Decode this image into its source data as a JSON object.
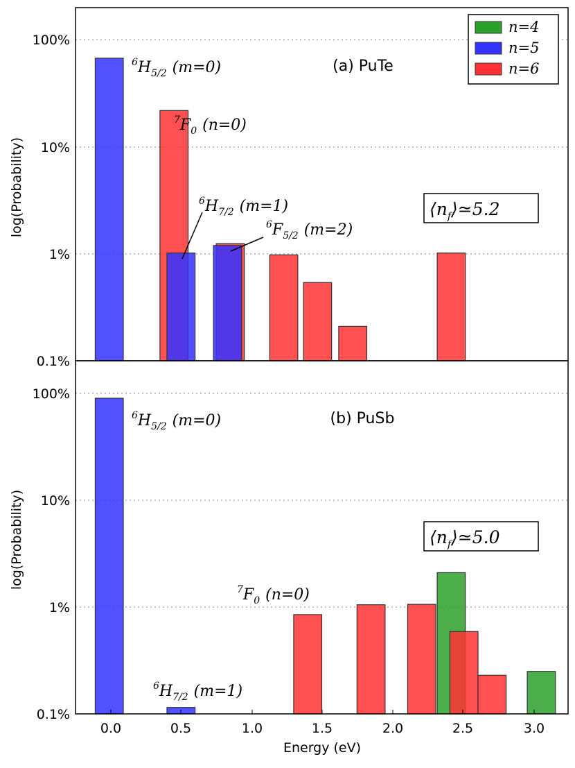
{
  "chart_data": [
    {
      "type": "bar",
      "title": "(a) PuTe",
      "xlabel": "",
      "ylabel": "log(Probability)",
      "yscale": "log",
      "ylim": [
        0.1,
        200
      ],
      "xlim": [
        -0.25,
        3.25
      ],
      "yticks": [
        {
          "value": 100,
          "label": "100%"
        },
        {
          "value": 10,
          "label": "10%"
        },
        {
          "value": 1,
          "label": "1%"
        },
        {
          "value": 0.1,
          "label": "0.1%"
        }
      ],
      "bar_width_eV": 0.2,
      "series": [
        {
          "name": "n=4",
          "color": "#2ca02c",
          "points": []
        },
        {
          "name": "n=6",
          "color": "#ff3333",
          "points": [
            {
              "x": 0.45,
              "y": 22
            },
            {
              "x": 0.85,
              "y": 1.25
            },
            {
              "x": 1.23,
              "y": 0.98
            },
            {
              "x": 1.47,
              "y": 0.54
            },
            {
              "x": 1.72,
              "y": 0.21
            },
            {
              "x": 2.42,
              "y": 1.02
            }
          ]
        },
        {
          "name": "n=5",
          "color": "#3333ff",
          "points": [
            {
              "x": -0.01,
              "y": 68
            },
            {
              "x": 0.5,
              "y": 1.02
            },
            {
              "x": 0.83,
              "y": 1.2
            }
          ]
        }
      ],
      "annotations": [
        {
          "base": "H",
          "pre": "6",
          "sub": "5/2",
          "rest": "(m=0)"
        },
        {
          "base": "F",
          "pre": "7",
          "sub": "0",
          "rest": "(n=0)"
        },
        {
          "base": "H",
          "pre": "6",
          "sub": "7/2",
          "rest": "(m=1)"
        },
        {
          "base": "F",
          "pre": "6",
          "sub": "5/2",
          "rest": "(m=2)"
        }
      ],
      "box_label": {
        "left": "⟨n",
        "sub": "f",
        "right": "⟩≃5.2"
      }
    },
    {
      "type": "bar",
      "title": "(b) PuSb",
      "xlabel": "Energy (eV)",
      "ylabel": "log(Probability)",
      "yscale": "log",
      "ylim": [
        0.1,
        200
      ],
      "xlim": [
        -0.25,
        3.25
      ],
      "xticks": [
        "0.0",
        "0.5",
        "1.0",
        "1.5",
        "2.0",
        "2.5",
        "3.0"
      ],
      "yticks": [
        {
          "value": 100,
          "label": "100%"
        },
        {
          "value": 10,
          "label": "10%"
        },
        {
          "value": 1,
          "label": "1%"
        },
        {
          "value": 0.1,
          "label": "0.1%"
        }
      ],
      "bar_width_eV": 0.2,
      "series": [
        {
          "name": "n=4",
          "color": "#2ca02c",
          "points": [
            {
              "x": 2.42,
              "y": 2.1
            },
            {
              "x": 3.06,
              "y": 0.25
            }
          ]
        },
        {
          "name": "n=6",
          "color": "#ff3333",
          "points": [
            {
              "x": 1.4,
              "y": 0.85
            },
            {
              "x": 1.85,
              "y": 1.05
            },
            {
              "x": 2.21,
              "y": 1.06
            },
            {
              "x": 2.51,
              "y": 0.59
            },
            {
              "x": 2.71,
              "y": 0.23
            }
          ]
        },
        {
          "name": "n=5",
          "color": "#3333ff",
          "points": [
            {
              "x": -0.01,
              "y": 90
            },
            {
              "x": 0.5,
              "y": 0.115
            }
          ]
        }
      ],
      "annotations": [
        {
          "base": "H",
          "pre": "6",
          "sub": "5/2",
          "rest": "(m=0)"
        },
        {
          "base": "F",
          "pre": "7",
          "sub": "0",
          "rest": "(n=0)"
        },
        {
          "base": "H",
          "pre": "6",
          "sub": "7/2",
          "rest": "(m=1)"
        }
      ],
      "box_label": {
        "left": "⟨n",
        "sub": "f",
        "right": "⟩≃5.0"
      }
    }
  ],
  "legend": {
    "placement": "top-right",
    "entries": [
      {
        "label": "n=4",
        "color": "#2ca02c"
      },
      {
        "label": "n=5",
        "color": "#3333ff"
      },
      {
        "label": "n=6",
        "color": "#ff3333"
      }
    ]
  }
}
